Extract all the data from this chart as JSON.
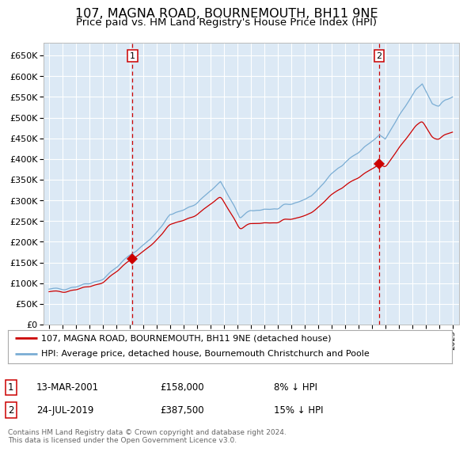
{
  "title": "107, MAGNA ROAD, BOURNEMOUTH, BH11 9NE",
  "subtitle": "Price paid vs. HM Land Registry's House Price Index (HPI)",
  "title_fontsize": 11.5,
  "subtitle_fontsize": 9.5,
  "bg_color": "#dce9f5",
  "grid_color": "#ffffff",
  "red_color": "#cc0000",
  "blue_color": "#7aadd4",
  "sale1_t": 2001.208,
  "sale1_price": 158000,
  "sale2_t": 2019.556,
  "sale2_price": 387500,
  "legend_items": [
    "107, MAGNA ROAD, BOURNEMOUTH, BH11 9NE (detached house)",
    "HPI: Average price, detached house, Bournemouth Christchurch and Poole"
  ],
  "note1_label": "1",
  "note1_date": "13-MAR-2001",
  "note1_price": "£158,000",
  "note1_pct": "8% ↓ HPI",
  "note2_label": "2",
  "note2_date": "24-JUL-2019",
  "note2_price": "£387,500",
  "note2_pct": "15% ↓ HPI",
  "footer": "Contains HM Land Registry data © Crown copyright and database right 2024.\nThis data is licensed under the Open Government Licence v3.0.",
  "ylim": [
    0,
    680000
  ],
  "yticks": [
    0,
    50000,
    100000,
    150000,
    200000,
    250000,
    300000,
    350000,
    400000,
    450000,
    500000,
    550000,
    600000,
    650000
  ],
  "xstart": 1995,
  "xend": 2025,
  "marker_size": 7
}
